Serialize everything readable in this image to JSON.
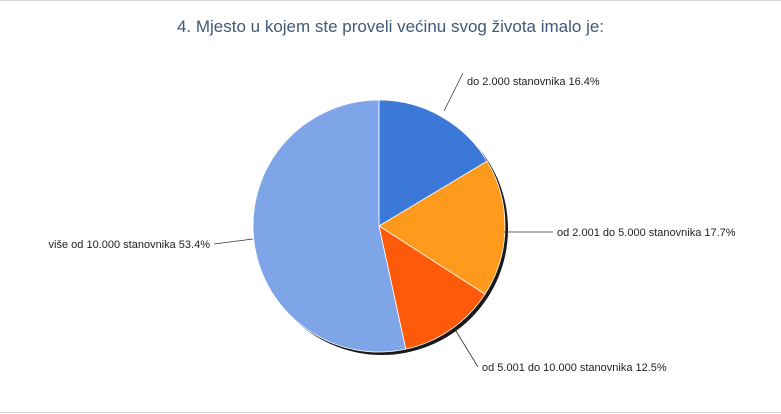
{
  "chart_data": {
    "type": "pie",
    "title": "4. Mjesto u kojem ste proveli većinu svog života imalo je:",
    "slices": [
      {
        "label": "do 2.000 stanovnika",
        "value": 16.4,
        "display": "do 2.000 stanovnika 16.4%",
        "color": "#3b78d8"
      },
      {
        "label": "od 2.001 do 5.000 stanovnika",
        "value": 17.7,
        "display": "od 2.001 do 5.000 stanovnika 17.7%",
        "color": "#ff9a1d"
      },
      {
        "label": "od 5.001 do 10.000 stanovnika",
        "value": 12.5,
        "display": "od 5.001 do 10.000 stanovnika 12.5%",
        "color": "#ff5a0a"
      },
      {
        "label": "više od 10.000 stanovnika",
        "value": 53.4,
        "display": "više od 10.000 stanovnika 53.4%",
        "color": "#7ea5e8"
      }
    ]
  }
}
